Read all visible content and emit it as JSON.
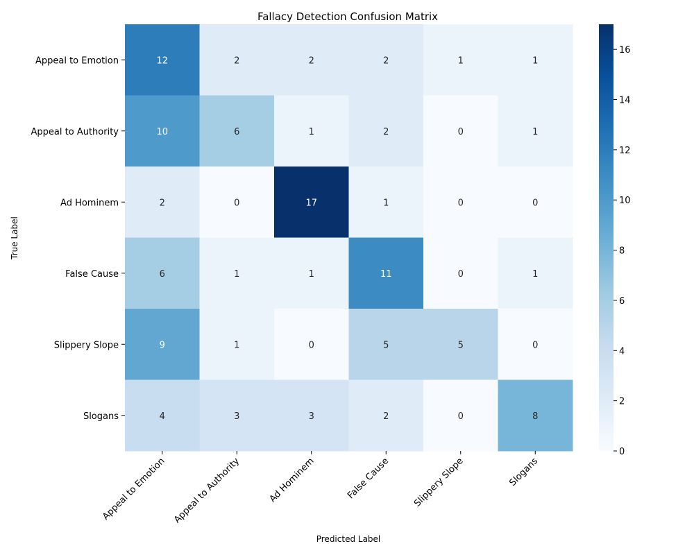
{
  "chart_data": {
    "type": "heatmap",
    "title": "Fallacy Detection Confusion Matrix",
    "xlabel": "Predicted Label",
    "ylabel": "True Label",
    "x_categories": [
      "Appeal to Emotion",
      "Appeal to Authority",
      "Ad Hominem",
      "False Cause",
      "Slippery Slope",
      "Slogans"
    ],
    "y_categories": [
      "Appeal to Emotion",
      "Appeal to Authority",
      "Ad Hominem",
      "False Cause",
      "Slippery Slope",
      "Slogans"
    ],
    "values": [
      [
        12,
        2,
        2,
        2,
        1,
        1
      ],
      [
        10,
        6,
        1,
        2,
        0,
        1
      ],
      [
        2,
        0,
        17,
        1,
        0,
        0
      ],
      [
        6,
        1,
        1,
        11,
        0,
        1
      ],
      [
        9,
        1,
        0,
        5,
        5,
        0
      ],
      [
        4,
        3,
        3,
        2,
        0,
        8
      ]
    ],
    "colorbar": {
      "min": 0,
      "max": 17,
      "ticks": [
        0,
        2,
        4,
        6,
        8,
        10,
        12,
        14,
        16
      ],
      "colormap": "Blues"
    },
    "annotations": true,
    "grid": false
  },
  "colors": {
    "blues_low": "#f7fbff",
    "blues_high": "#08306b",
    "text_light": "#ffffff",
    "text_dark": "#262626"
  }
}
